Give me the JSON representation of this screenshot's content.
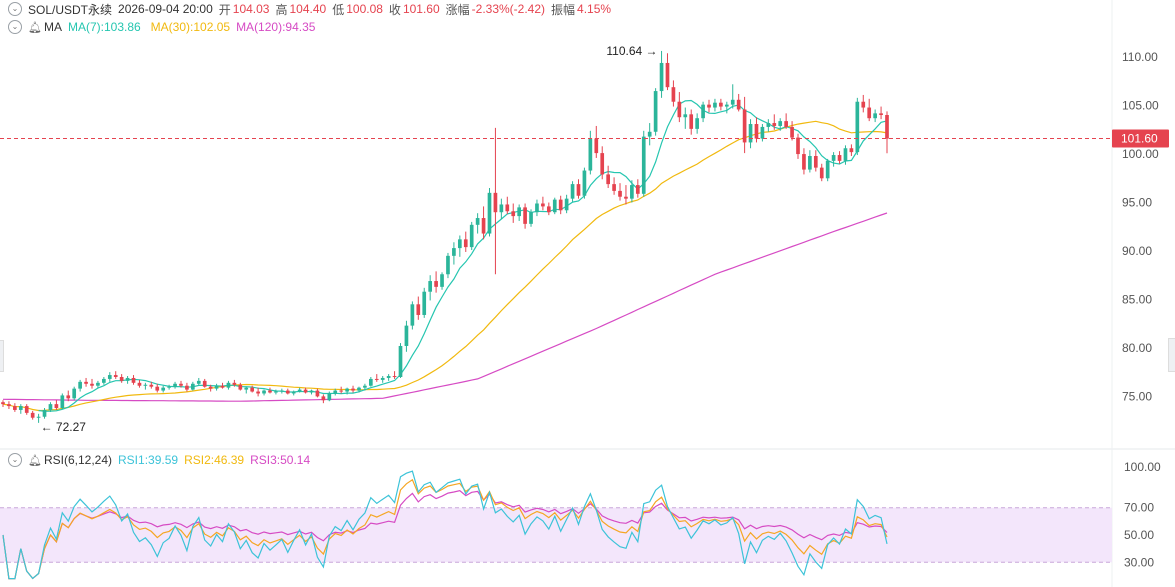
{
  "header": {
    "symbol": "SOL/USDT永续",
    "datetime": "2026-09-04 20:00",
    "open_label": "开",
    "open": "104.03",
    "high_label": "高",
    "high": "104.40",
    "low_label": "低",
    "low": "100.08",
    "close_label": "收",
    "close": "101.60",
    "change_label": "涨幅",
    "change": "-2.33%(-2.42)",
    "amp_label": "振幅",
    "amp": "4.15%"
  },
  "ma_legend": {
    "name": "MA",
    "ma7": "MA(7):103.86",
    "ma30": "MA(30):102.05",
    "ma120": "MA(120):94.35"
  },
  "rsi_legend": {
    "name": "RSI(6,12,24)",
    "rsi1": "RSI1:39.59",
    "rsi2": "RSI2:46.39",
    "rsi3": "RSI3:50.14"
  },
  "colors": {
    "up": "#2bb59a",
    "down": "#e5434f",
    "ma7": "#26c6b0",
    "ma30": "#f1b90f",
    "ma120": "#d64bc4",
    "rsi1": "#3cc3d8",
    "rsi2": "#f5a623",
    "rsi3": "#d64bc4",
    "price_tag": "#e5434f"
  },
  "chart_data": [
    {
      "type": "candlestick",
      "title": "SOL/USDT永续",
      "interval": "4h",
      "y_ticks": [
        "110.00",
        "105.00",
        "100.00",
        "95.00",
        "90.00",
        "85.00",
        "80.00",
        "75.00"
      ],
      "ylim": [
        70.5,
        112.8
      ],
      "last_price": "101.60",
      "annotations": [
        {
          "text": "110.64",
          "value": 110.64
        },
        {
          "text": "72.27",
          "value": 72.27
        }
      ],
      "ohlc": [
        [
          74.4,
          74.6,
          73.9,
          74.2
        ],
        [
          74.2,
          74.5,
          73.7,
          74.0
        ],
        [
          74.0,
          74.3,
          73.4,
          73.6
        ],
        [
          73.6,
          74.2,
          73.2,
          74.0
        ],
        [
          74.0,
          74.2,
          73.1,
          73.3
        ],
        [
          73.3,
          73.5,
          72.6,
          72.8
        ],
        [
          72.8,
          73.2,
          72.27,
          72.9
        ],
        [
          72.9,
          73.8,
          72.7,
          73.6
        ],
        [
          73.6,
          74.4,
          73.4,
          74.2
        ],
        [
          74.2,
          74.6,
          73.6,
          73.8
        ],
        [
          73.8,
          75.3,
          73.7,
          75.1
        ],
        [
          75.1,
          75.6,
          74.5,
          74.8
        ],
        [
          74.8,
          76.0,
          74.6,
          75.8
        ],
        [
          75.8,
          76.7,
          75.5,
          76.5
        ],
        [
          76.5,
          76.9,
          76.0,
          76.3
        ],
        [
          76.3,
          76.8,
          75.8,
          76.1
        ],
        [
          76.1,
          76.6,
          75.9,
          76.4
        ],
        [
          76.4,
          77.0,
          76.2,
          76.8
        ],
        [
          76.8,
          77.5,
          76.5,
          77.2
        ],
        [
          77.2,
          77.6,
          76.8,
          77.0
        ],
        [
          77.0,
          77.3,
          76.4,
          76.6
        ],
        [
          76.6,
          77.1,
          76.3,
          76.9
        ],
        [
          76.9,
          77.2,
          76.2,
          76.4
        ],
        [
          76.4,
          76.7,
          75.9,
          76.1
        ],
        [
          76.1,
          76.4,
          75.7,
          76.2
        ],
        [
          76.2,
          76.5,
          75.8,
          76.0
        ],
        [
          76.0,
          76.3,
          75.4,
          75.6
        ],
        [
          75.6,
          76.1,
          75.4,
          75.9
        ],
        [
          75.9,
          76.2,
          75.7,
          76.0
        ],
        [
          76.0,
          76.5,
          75.8,
          76.3
        ],
        [
          76.3,
          76.6,
          75.9,
          76.1
        ],
        [
          76.1,
          76.4,
          75.5,
          75.7
        ],
        [
          75.7,
          76.5,
          75.6,
          76.3
        ],
        [
          76.3,
          76.9,
          76.1,
          76.6
        ],
        [
          76.6,
          76.8,
          75.9,
          76.0
        ],
        [
          76.0,
          76.2,
          75.5,
          75.8
        ],
        [
          75.8,
          76.3,
          75.6,
          76.1
        ],
        [
          76.1,
          76.4,
          75.8,
          75.9
        ],
        [
          75.9,
          76.6,
          75.7,
          76.4
        ],
        [
          76.4,
          76.7,
          76.0,
          76.2
        ],
        [
          76.2,
          76.4,
          75.6,
          75.7
        ],
        [
          75.7,
          76.0,
          75.3,
          75.9
        ],
        [
          75.9,
          76.1,
          75.4,
          75.5
        ],
        [
          75.5,
          75.9,
          75.0,
          75.3
        ],
        [
          75.3,
          75.7,
          75.1,
          75.6
        ],
        [
          75.6,
          75.9,
          75.3,
          75.4
        ],
        [
          75.4,
          75.7,
          75.2,
          75.5
        ],
        [
          75.5,
          75.8,
          75.3,
          75.6
        ],
        [
          75.6,
          75.8,
          75.2,
          75.3
        ],
        [
          75.3,
          75.6,
          75.1,
          75.5
        ],
        [
          75.5,
          75.9,
          75.4,
          75.7
        ],
        [
          75.7,
          75.9,
          75.3,
          75.4
        ],
        [
          75.4,
          75.7,
          75.2,
          75.6
        ],
        [
          75.6,
          75.8,
          74.9,
          75.0
        ],
        [
          75.0,
          75.2,
          74.3,
          74.6
        ],
        [
          74.6,
          75.5,
          74.5,
          75.3
        ],
        [
          75.3,
          75.8,
          75.1,
          75.6
        ],
        [
          75.6,
          76.0,
          75.3,
          75.5
        ],
        [
          75.5,
          75.9,
          75.2,
          75.8
        ],
        [
          75.8,
          76.1,
          75.4,
          75.6
        ],
        [
          75.6,
          76.0,
          75.4,
          75.9
        ],
        [
          75.9,
          76.3,
          75.6,
          76.1
        ],
        [
          76.1,
          77.0,
          76.0,
          76.8
        ],
        [
          76.8,
          77.3,
          76.5,
          76.7
        ],
        [
          76.7,
          77.1,
          76.4,
          76.9
        ],
        [
          76.9,
          77.3,
          76.6,
          77.1
        ],
        [
          77.1,
          77.6,
          76.8,
          77.0
        ],
        [
          77.0,
          80.5,
          76.9,
          80.2
        ],
        [
          80.2,
          82.8,
          79.6,
          82.3
        ],
        [
          82.3,
          84.8,
          81.9,
          84.5
        ],
        [
          84.5,
          85.3,
          82.9,
          83.4
        ],
        [
          83.4,
          86.2,
          83.1,
          85.8
        ],
        [
          85.8,
          87.5,
          84.9,
          86.9
        ],
        [
          86.9,
          87.9,
          85.7,
          86.3
        ],
        [
          86.3,
          87.8,
          86.0,
          87.6
        ],
        [
          87.6,
          89.8,
          87.2,
          89.5
        ],
        [
          89.5,
          90.9,
          88.6,
          90.3
        ],
        [
          90.3,
          91.6,
          89.4,
          91.2
        ],
        [
          91.2,
          92.0,
          89.9,
          90.4
        ],
        [
          90.4,
          93.0,
          90.1,
          92.7
        ],
        [
          92.7,
          93.9,
          91.8,
          93.4
        ],
        [
          93.4,
          94.6,
          91.2,
          91.8
        ],
        [
          91.8,
          96.5,
          91.5,
          96.0
        ],
        [
          96.0,
          102.7,
          87.6,
          94.0
        ],
        [
          94.0,
          95.4,
          93.3,
          94.8
        ],
        [
          94.8,
          95.6,
          93.8,
          94.1
        ],
        [
          94.1,
          94.9,
          92.9,
          93.6
        ],
        [
          93.6,
          94.8,
          93.1,
          94.5
        ],
        [
          94.5,
          94.9,
          92.3,
          92.8
        ],
        [
          92.8,
          94.3,
          92.5,
          94.0
        ],
        [
          94.0,
          95.3,
          93.6,
          94.9
        ],
        [
          94.9,
          95.6,
          94.2,
          94.6
        ],
        [
          94.6,
          95.0,
          93.7,
          94.0
        ],
        [
          94.0,
          95.5,
          93.8,
          95.3
        ],
        [
          95.3,
          95.7,
          93.8,
          94.2
        ],
        [
          94.2,
          95.8,
          93.9,
          95.4
        ],
        [
          95.4,
          97.2,
          95.1,
          96.9
        ],
        [
          96.9,
          97.4,
          95.4,
          95.7
        ],
        [
          95.7,
          98.6,
          95.4,
          98.3
        ],
        [
          98.3,
          102.4,
          97.9,
          101.6
        ],
        [
          101.6,
          102.9,
          99.6,
          100.1
        ],
        [
          100.1,
          100.8,
          97.4,
          97.9
        ],
        [
          97.9,
          98.8,
          96.5,
          96.9
        ],
        [
          96.9,
          97.6,
          95.8,
          96.2
        ],
        [
          96.2,
          97.0,
          95.2,
          95.6
        ],
        [
          95.6,
          96.8,
          94.8,
          95.4
        ],
        [
          95.4,
          97.3,
          95.0,
          96.8
        ],
        [
          96.8,
          97.4,
          95.5,
          95.9
        ],
        [
          95.9,
          102.4,
          95.6,
          101.8
        ],
        [
          101.8,
          103.2,
          100.9,
          102.3
        ],
        [
          102.3,
          106.8,
          101.9,
          106.5
        ],
        [
          106.5,
          110.64,
          105.8,
          109.4
        ],
        [
          109.4,
          110.4,
          106.6,
          106.9
        ],
        [
          106.9,
          107.6,
          104.9,
          105.4
        ],
        [
          105.4,
          106.4,
          103.3,
          103.8
        ],
        [
          103.8,
          104.8,
          102.6,
          104.1
        ],
        [
          104.1,
          104.6,
          102.0,
          102.6
        ],
        [
          102.6,
          104.2,
          102.1,
          103.7
        ],
        [
          103.7,
          105.4,
          103.3,
          105.1
        ],
        [
          105.1,
          105.6,
          104.3,
          104.8
        ],
        [
          104.8,
          105.7,
          104.4,
          105.3
        ],
        [
          105.3,
          105.7,
          104.5,
          104.9
        ],
        [
          104.9,
          105.4,
          104.2,
          105.1
        ],
        [
          105.1,
          107.2,
          104.7,
          105.6
        ],
        [
          105.6,
          106.2,
          104.4,
          104.6
        ],
        [
          104.6,
          105.9,
          100.1,
          101.2
        ],
        [
          101.2,
          103.6,
          100.6,
          103.1
        ],
        [
          103.1,
          103.8,
          101.2,
          101.6
        ],
        [
          101.6,
          103.1,
          101.3,
          102.8
        ],
        [
          102.8,
          103.6,
          102.3,
          103.2
        ],
        [
          103.2,
          104.1,
          102.5,
          102.9
        ],
        [
          102.9,
          103.7,
          102.4,
          103.4
        ],
        [
          103.4,
          104.2,
          102.6,
          102.8
        ],
        [
          102.8,
          103.4,
          101.4,
          101.7
        ],
        [
          101.7,
          102.1,
          99.5,
          100.0
        ],
        [
          100.0,
          100.6,
          97.9,
          98.4
        ],
        [
          98.4,
          100.4,
          98.1,
          99.8
        ],
        [
          99.8,
          100.4,
          98.2,
          98.6
        ],
        [
          98.6,
          99.0,
          97.2,
          97.5
        ],
        [
          97.5,
          99.5,
          97.2,
          99.3
        ],
        [
          99.3,
          100.2,
          98.7,
          99.9
        ],
        [
          99.9,
          100.3,
          99.0,
          99.3
        ],
        [
          99.3,
          100.9,
          98.9,
          100.6
        ],
        [
          100.6,
          101.0,
          99.8,
          100.2
        ],
        [
          100.2,
          105.8,
          99.9,
          105.4
        ],
        [
          105.4,
          106.1,
          104.3,
          104.8
        ],
        [
          104.8,
          105.7,
          103.4,
          103.7
        ],
        [
          103.7,
          104.6,
          103.3,
          104.2
        ],
        [
          104.2,
          104.9,
          103.6,
          104.03
        ],
        [
          104.03,
          104.4,
          100.08,
          101.6
        ]
      ],
      "series": [
        {
          "name": "MA(7)",
          "start_index": 6
        },
        {
          "name": "MA(30)",
          "start_index": 0
        },
        {
          "name": "MA(120)",
          "values_by_index": [
            [
              0,
              74.7
            ],
            [
              14,
              74.6
            ],
            [
              40,
              74.5
            ],
            [
              64,
              74.8
            ],
            [
              80,
              76.8
            ],
            [
              100,
              82.0
            ],
            [
              120,
              87.6
            ],
            [
              140,
              92.0
            ],
            [
              151,
              94.35
            ]
          ]
        }
      ]
    },
    {
      "type": "line",
      "title": "RSI(6,12,24)",
      "y_ticks": [
        "100.00",
        "70.00",
        "50.00",
        "30.00"
      ],
      "ylim": [
        17,
        105
      ],
      "bands": [
        30,
        70
      ],
      "series": [
        {
          "name": "RSI1",
          "period": 6,
          "last": 39.59
        },
        {
          "name": "RSI2",
          "period": 12,
          "last": 46.39
        },
        {
          "name": "RSI3",
          "period": 24,
          "last": 50.14
        }
      ]
    }
  ]
}
